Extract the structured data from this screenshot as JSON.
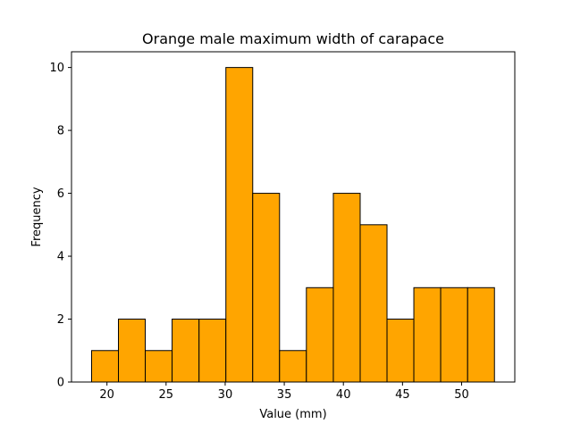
{
  "chart_data": {
    "type": "bar",
    "title": "Orange male maximum width of carapace",
    "xlabel": "Value (mm)",
    "ylabel": "Frequency",
    "bin_edges": [
      18.7,
      20.97,
      23.24,
      25.51,
      27.79,
      30.06,
      32.33,
      34.6,
      36.87,
      39.15,
      41.42,
      43.69,
      45.96,
      48.23,
      50.51,
      52.78
    ],
    "values": [
      1,
      2,
      1,
      2,
      2,
      10,
      6,
      1,
      3,
      6,
      5,
      2,
      3,
      3,
      3
    ],
    "xlim": [
      17.0,
      54.5
    ],
    "ylim": [
      0,
      10.5
    ],
    "xticks": [
      20,
      25,
      30,
      35,
      40,
      45,
      50
    ],
    "xtick_labels": [
      "20",
      "25",
      "30",
      "35",
      "40",
      "45",
      "50"
    ],
    "yticks": [
      0,
      2,
      4,
      6,
      8,
      10
    ],
    "ytick_labels": [
      "0",
      "2",
      "4",
      "6",
      "8",
      "10"
    ],
    "grid": false,
    "legend": "none",
    "bar_color": "#ffa500",
    "edge_color": "#000000"
  }
}
